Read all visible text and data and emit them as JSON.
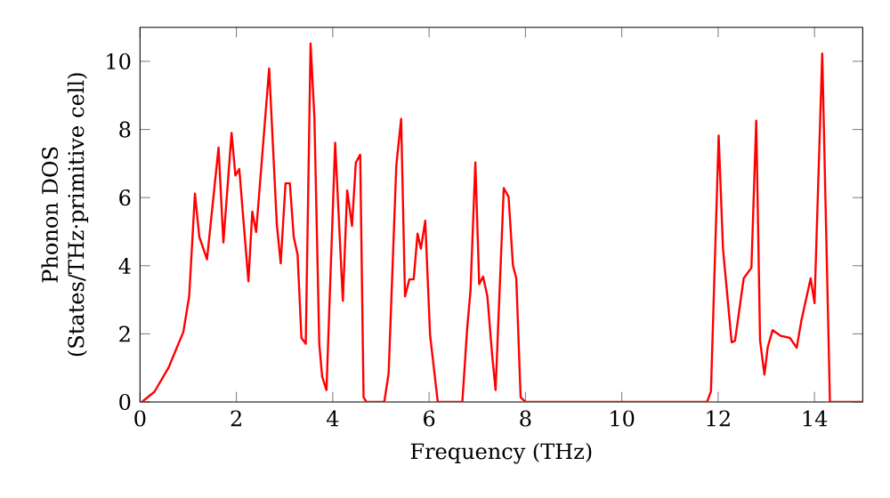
{
  "chart_data": {
    "type": "line",
    "xlabel": "Frequency (THz)",
    "ylabel": "Phonon DOS (States/THz·primitive cell)",
    "xlim": [
      0,
      15
    ],
    "ylim": [
      0,
      11
    ],
    "xticks": [
      0,
      2,
      4,
      6,
      8,
      10,
      12,
      14
    ],
    "yticks": [
      0,
      2,
      4,
      6,
      8,
      10
    ],
    "grid": false,
    "marker": "none",
    "line_style": "solid",
    "series": [
      {
        "color": "#ff0000",
        "x": [
          0.04,
          0.3,
          0.59,
          0.9,
          1.02,
          1.14,
          1.23,
          1.39,
          1.63,
          1.73,
          1.9,
          1.98,
          2.06,
          2.25,
          2.33,
          2.41,
          2.68,
          2.84,
          2.92,
          3.02,
          3.11,
          3.19,
          3.27,
          3.35,
          3.44,
          3.54,
          3.62,
          3.72,
          3.78,
          3.87,
          4.05,
          4.21,
          4.3,
          4.4,
          4.48,
          4.57,
          4.64,
          4.7,
          5.07,
          5.16,
          5.32,
          5.42,
          5.5,
          5.59,
          5.68,
          5.76,
          5.83,
          5.92,
          6.02,
          6.18,
          6.69,
          6.79,
          6.86,
          6.96,
          7.04,
          7.12,
          7.21,
          7.31,
          7.38,
          7.55,
          7.65,
          7.74,
          7.81,
          7.9,
          8.0,
          11.77,
          11.85,
          12.01,
          12.1,
          12.28,
          12.35,
          12.53,
          12.69,
          12.79,
          12.87,
          12.96,
          13.03,
          13.13,
          13.3,
          13.49,
          13.63,
          13.73,
          13.92,
          14.0,
          14.16,
          14.32,
          14.99
        ],
        "values": [
          0,
          0.3,
          1.0,
          2.06,
          3.1,
          6.12,
          4.85,
          4.19,
          7.47,
          4.68,
          7.9,
          6.65,
          6.84,
          3.54,
          5.59,
          4.99,
          9.79,
          5.2,
          4.07,
          6.42,
          6.42,
          4.85,
          4.33,
          1.88,
          1.71,
          10.52,
          8.34,
          1.71,
          0.75,
          0.35,
          7.61,
          2.97,
          6.21,
          5.17,
          7.03,
          7.26,
          0.14,
          0,
          0,
          0.84,
          6.95,
          8.31,
          3.1,
          3.6,
          3.6,
          4.94,
          4.5,
          5.32,
          1.97,
          0,
          0,
          2.15,
          3.28,
          7.03,
          3.46,
          3.68,
          3.1,
          1.36,
          0.35,
          6.28,
          6.02,
          4.01,
          3.63,
          0.14,
          0,
          0,
          0.31,
          7.82,
          4.5,
          1.75,
          1.8,
          3.63,
          3.94,
          8.26,
          1.8,
          0.8,
          1.62,
          2.11,
          1.94,
          1.88,
          1.59,
          2.41,
          3.63,
          2.9,
          10.23,
          0,
          0
        ]
      }
    ]
  }
}
